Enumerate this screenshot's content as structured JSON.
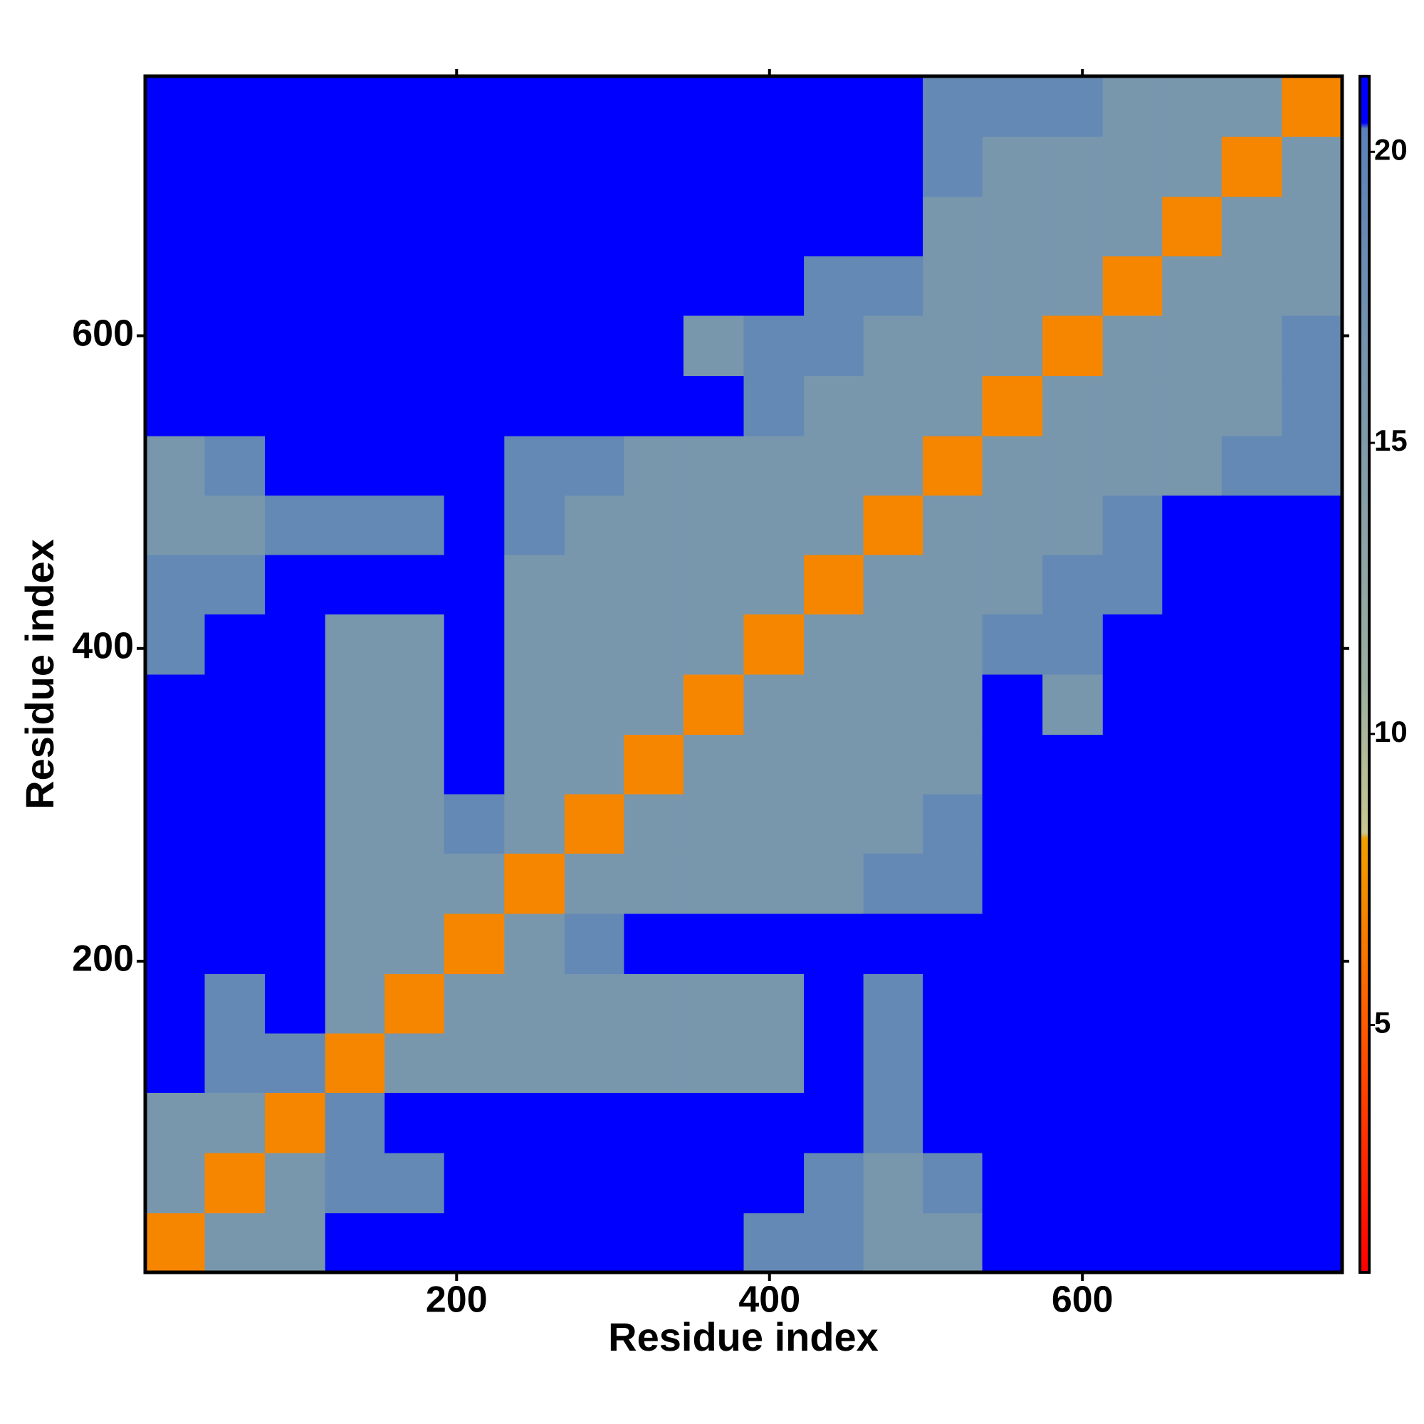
{
  "chart_data": {
    "type": "heatmap",
    "xlabel": "Residue index",
    "ylabel": "Residue index",
    "xlim": [
      1,
      766
    ],
    "ylim": [
      1,
      766
    ],
    "xticks": [
      200,
      400,
      600
    ],
    "yticks": [
      200,
      400,
      600
    ],
    "x": [
      20,
      58,
      97,
      135,
      173,
      211,
      250,
      288,
      326,
      364,
      403,
      441,
      479,
      517,
      555,
      594,
      632,
      670,
      708,
      747
    ],
    "y": [
      20,
      58,
      97,
      135,
      173,
      211,
      250,
      288,
      326,
      364,
      403,
      441,
      479,
      517,
      555,
      594,
      632,
      670,
      708,
      747
    ],
    "z": [
      [
        7,
        16,
        16,
        21,
        21,
        21,
        21,
        21,
        21,
        21,
        19,
        19,
        16,
        16,
        21,
        21,
        21,
        21,
        21,
        21
      ],
      [
        16,
        7,
        16,
        19,
        19,
        21,
        21,
        21,
        21,
        21,
        21,
        19,
        16,
        19,
        21,
        21,
        21,
        21,
        21,
        21
      ],
      [
        16,
        16,
        7,
        19,
        21,
        21,
        21,
        21,
        21,
        21,
        21,
        21,
        19,
        21,
        21,
        21,
        21,
        21,
        21,
        21
      ],
      [
        21,
        19,
        19,
        7,
        16,
        16,
        16,
        16,
        16,
        16,
        16,
        21,
        19,
        21,
        21,
        21,
        21,
        21,
        21,
        21
      ],
      [
        21,
        19,
        21,
        16,
        7,
        16,
        16,
        16,
        16,
        16,
        16,
        21,
        19,
        21,
        21,
        21,
        21,
        21,
        21,
        21
      ],
      [
        21,
        21,
        21,
        16,
        16,
        7,
        16,
        19,
        21,
        21,
        21,
        21,
        21,
        21,
        21,
        21,
        21,
        21,
        21,
        21
      ],
      [
        21,
        21,
        21,
        16,
        16,
        16,
        7,
        16,
        16,
        16,
        16,
        16,
        19,
        19,
        21,
        21,
        21,
        21,
        21,
        21
      ],
      [
        21,
        21,
        21,
        16,
        16,
        19,
        16,
        7,
        16,
        16,
        16,
        16,
        16,
        19,
        21,
        21,
        21,
        21,
        21,
        21
      ],
      [
        21,
        21,
        21,
        16,
        16,
        21,
        16,
        16,
        7,
        16,
        16,
        16,
        16,
        16,
        21,
        21,
        21,
        21,
        21,
        21
      ],
      [
        21,
        21,
        21,
        16,
        16,
        21,
        16,
        16,
        16,
        7,
        16,
        16,
        16,
        16,
        21,
        16,
        21,
        21,
        21,
        21
      ],
      [
        19,
        21,
        21,
        16,
        16,
        21,
        16,
        16,
        16,
        16,
        7,
        16,
        16,
        16,
        19,
        19,
        21,
        21,
        21,
        21
      ],
      [
        19,
        19,
        21,
        21,
        21,
        21,
        16,
        16,
        16,
        16,
        16,
        7,
        16,
        16,
        16,
        19,
        19,
        21,
        21,
        21
      ],
      [
        16,
        16,
        19,
        19,
        19,
        21,
        19,
        16,
        16,
        16,
        16,
        16,
        7,
        16,
        16,
        16,
        19,
        21,
        21,
        21
      ],
      [
        16,
        19,
        21,
        21,
        21,
        21,
        19,
        19,
        16,
        16,
        16,
        16,
        16,
        7,
        16,
        16,
        16,
        16,
        19,
        19
      ],
      [
        21,
        21,
        21,
        21,
        21,
        21,
        21,
        21,
        21,
        21,
        19,
        16,
        16,
        16,
        7,
        16,
        16,
        16,
        16,
        19
      ],
      [
        21,
        21,
        21,
        21,
        21,
        21,
        21,
        21,
        21,
        16,
        19,
        19,
        16,
        16,
        16,
        7,
        16,
        16,
        16,
        19
      ],
      [
        21,
        21,
        21,
        21,
        21,
        21,
        21,
        21,
        21,
        21,
        21,
        19,
        19,
        16,
        16,
        16,
        7,
        16,
        16,
        16
      ],
      [
        21,
        21,
        21,
        21,
        21,
        21,
        21,
        21,
        21,
        21,
        21,
        21,
        21,
        16,
        16,
        16,
        16,
        7,
        16,
        16
      ],
      [
        21,
        21,
        21,
        21,
        21,
        21,
        21,
        21,
        21,
        21,
        21,
        21,
        21,
        19,
        16,
        16,
        16,
        16,
        7,
        16
      ],
      [
        21,
        21,
        21,
        21,
        21,
        21,
        21,
        21,
        21,
        21,
        21,
        21,
        21,
        19,
        19,
        19,
        16,
        16,
        16,
        7
      ]
    ],
    "zlim": [
      0.75,
      21.3
    ],
    "zticks": [
      5,
      10,
      15,
      20
    ],
    "colorscale": [
      {
        "value": 0.75,
        "color": "#ff0000"
      },
      {
        "value": 5,
        "color": "#ff5a00"
      },
      {
        "value": 8.2,
        "color": "#f0a000"
      },
      {
        "value": 8.3,
        "color": "#c8c890"
      },
      {
        "value": 11,
        "color": "#9aaea0"
      },
      {
        "value": 20.4,
        "color": "#5b82b8"
      },
      {
        "value": 20.5,
        "color": "#0000ff"
      },
      {
        "value": 21.3,
        "color": "#0000ff"
      }
    ]
  }
}
